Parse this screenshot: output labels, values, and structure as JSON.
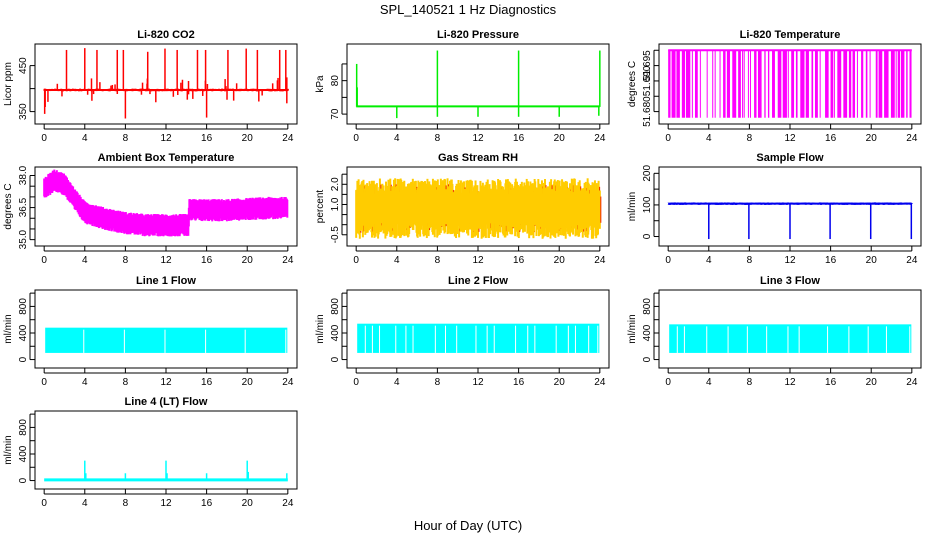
{
  "figure": {
    "title": "SPL_140521  1 Hz Diagnostics",
    "xlabel": "Hour of Day (UTC)"
  },
  "chart_data": [
    {
      "id": "co2",
      "type": "line",
      "title": "Li-820 CO2",
      "ylabel": "Licor ppm",
      "color": "#ff0000",
      "xlim": [
        0,
        24
      ],
      "ylim": [
        330,
        490
      ],
      "xticks": [
        0,
        4,
        8,
        12,
        16,
        20,
        24
      ],
      "xtick_labels": [
        "0",
        "4",
        "8",
        "12",
        "16",
        "20",
        "24"
      ],
      "yticks": [
        350,
        400,
        450
      ],
      "ytick_labels": [
        "350",
        "",
        "450"
      ],
      "baseline": 397,
      "noise": 3,
      "spikes_up": [
        [
          2.2,
          484
        ],
        [
          4.0,
          488
        ],
        [
          5.2,
          484
        ],
        [
          7.2,
          484
        ],
        [
          7.8,
          484
        ],
        [
          10.2,
          480
        ],
        [
          11.9,
          487
        ],
        [
          13.1,
          484
        ],
        [
          15.1,
          484
        ],
        [
          15.9,
          484
        ],
        [
          18.1,
          484
        ],
        [
          19.9,
          487
        ],
        [
          21.0,
          484
        ],
        [
          23.2,
          484
        ],
        [
          23.8,
          484
        ]
      ],
      "spikes_down": [
        [
          0.05,
          345
        ],
        [
          0.1,
          360
        ],
        [
          8.0,
          335
        ],
        [
          16.0,
          337
        ],
        [
          23.9,
          368
        ]
      ]
    },
    {
      "id": "pressure",
      "type": "line",
      "title": "Li-820 Pressure",
      "ylabel": "kPa",
      "color": "#00ee00",
      "xlim": [
        0,
        24
      ],
      "ylim": [
        68,
        90
      ],
      "xticks": [
        0,
        4,
        8,
        12,
        16,
        20,
        24
      ],
      "xtick_labels": [
        "0",
        "4",
        "8",
        "12",
        "16",
        "20",
        "24"
      ],
      "yticks": [
        70,
        75,
        80,
        85
      ],
      "ytick_labels": [
        "70",
        "",
        "80",
        ""
      ],
      "baseline": 72.3,
      "noise": 0.1,
      "spikes_up": [
        [
          0.05,
          85
        ],
        [
          0.1,
          78
        ],
        [
          8.0,
          89
        ],
        [
          16.0,
          89
        ],
        [
          24.0,
          89
        ]
      ],
      "spikes_down": [
        [
          4.0,
          68.8
        ],
        [
          8.0,
          69.2
        ],
        [
          12.0,
          69.2
        ],
        [
          16.0,
          69.2
        ],
        [
          20.0,
          69.2
        ],
        [
          23.9,
          69.5
        ]
      ]
    },
    {
      "id": "li820-temp",
      "type": "line",
      "title": "Li-820 Temperature",
      "ylabel": "degrees C",
      "color": "#ff00ff",
      "xlim": [
        0,
        24
      ],
      "ylim": [
        51.677,
        51.701
      ],
      "xticks": [
        0,
        4,
        8,
        12,
        16,
        20,
        24
      ],
      "xtick_labels": [
        "0",
        "4",
        "8",
        "12",
        "16",
        "20",
        "24"
      ],
      "yticks": [
        51.68,
        51.685,
        51.69,
        51.695,
        51.7
      ],
      "ytick_labels": [
        "51.680",
        "",
        "51.690",
        "51.695",
        ""
      ],
      "levels": [
        51.678,
        51.7
      ]
    },
    {
      "id": "box-temp",
      "type": "line",
      "title": "Ambient Box Temperature",
      "ylabel": "degrees C",
      "color": "#ff00ff",
      "xlim": [
        0,
        24
      ],
      "ylim": [
        34.85,
        38.25
      ],
      "xticks": [
        0,
        4,
        8,
        12,
        16,
        20,
        24
      ],
      "xtick_labels": [
        "0",
        "4",
        "8",
        "12",
        "16",
        "20",
        "24"
      ],
      "yticks": [
        35.0,
        35.5,
        36.0,
        36.5,
        37.0,
        37.5,
        38.0
      ],
      "ytick_labels": [
        "35.0",
        "",
        "",
        "36.5",
        "",
        "",
        "38.0"
      ],
      "trend": [
        [
          0,
          37.4
        ],
        [
          1,
          37.8
        ],
        [
          2,
          37.6
        ],
        [
          3,
          36.9
        ],
        [
          4,
          36.3
        ],
        [
          6,
          36.0
        ],
        [
          8,
          35.8
        ],
        [
          10,
          35.7
        ],
        [
          12,
          35.7
        ],
        [
          14.2,
          35.7
        ],
        [
          14.3,
          36.4
        ],
        [
          16,
          36.4
        ],
        [
          18,
          36.4
        ],
        [
          20,
          36.45
        ],
        [
          22,
          36.5
        ],
        [
          24,
          36.5
        ]
      ],
      "spread": 0.35
    },
    {
      "id": "rh",
      "type": "line",
      "title": "Gas Stream RH",
      "ylabel": "percent",
      "color": "#ffcc00",
      "dot_color": "#ee2200",
      "xlim": [
        0,
        24
      ],
      "ylim": [
        -0.9,
        2.7
      ],
      "xticks": [
        0,
        4,
        8,
        12,
        16,
        20,
        24
      ],
      "xtick_labels": [
        "0",
        "4",
        "8",
        "12",
        "16",
        "20",
        "24"
      ],
      "yticks": [
        -0.5,
        0.0,
        0.5,
        1.0,
        1.5,
        2.0,
        2.5
      ],
      "ytick_labels": [
        "-0.5",
        "",
        "",
        "1.0",
        "",
        "2.0",
        ""
      ],
      "center": 0.9,
      "range": [
        -0.7,
        2.3
      ]
    },
    {
      "id": "sample-flow",
      "type": "line",
      "title": "Sample Flow",
      "ylabel": "ml/min",
      "color": "#0000ee",
      "xlim": [
        0,
        24
      ],
      "ylim": [
        -20,
        210
      ],
      "xticks": [
        0,
        4,
        8,
        12,
        16,
        20,
        24
      ],
      "xtick_labels": [
        "0",
        "4",
        "8",
        "12",
        "16",
        "20",
        "24"
      ],
      "yticks": [
        0,
        50,
        100,
        150,
        200
      ],
      "ytick_labels": [
        "0",
        "",
        "100",
        "",
        "200"
      ],
      "baseline": 104,
      "noise": 4,
      "spikes_down": [
        [
          4.0,
          -8
        ],
        [
          7.95,
          -8
        ],
        [
          12.0,
          -8
        ],
        [
          15.95,
          -8
        ],
        [
          19.95,
          -8
        ],
        [
          23.95,
          -8
        ]
      ]
    },
    {
      "id": "line1-flow",
      "type": "area",
      "title": "Line 1 Flow",
      "ylabel": "ml/min",
      "color": "#00ffff",
      "xlim": [
        0,
        24
      ],
      "ylim": [
        -80,
        1000
      ],
      "xticks": [
        0,
        4,
        8,
        12,
        16,
        20,
        24
      ],
      "xtick_labels": [
        "0",
        "4",
        "8",
        "12",
        "16",
        "20",
        "24"
      ],
      "yticks": [
        0,
        200,
        400,
        600,
        800,
        1000
      ],
      "ytick_labels": [
        "0",
        "",
        "400",
        "",
        "800",
        ""
      ],
      "band": [
        100,
        480
      ],
      "gaps": [
        3.9,
        7.9,
        11.9,
        15.9,
        19.8,
        23.8
      ]
    },
    {
      "id": "line2-flow",
      "type": "area",
      "title": "Line 2 Flow",
      "ylabel": "ml/min",
      "color": "#00ffff",
      "xlim": [
        0,
        24
      ],
      "ylim": [
        -80,
        1000
      ],
      "xticks": [
        0,
        4,
        8,
        12,
        16,
        20,
        24
      ],
      "xtick_labels": [
        "0",
        "4",
        "8",
        "12",
        "16",
        "20",
        "24"
      ],
      "yticks": [
        0,
        200,
        400,
        600,
        800,
        1000
      ],
      "ytick_labels": [
        "0",
        "",
        "400",
        "",
        "800",
        ""
      ],
      "band": [
        100,
        540
      ],
      "gaps": [
        0.9,
        1.6,
        2.3,
        3.9,
        4.9,
        5.6,
        7.8,
        8.8,
        9.9,
        11.8,
        12.9,
        13.6,
        15.7,
        16.9,
        17.6,
        19.7,
        20.9,
        21.6,
        22.9,
        23.8
      ]
    },
    {
      "id": "line3-flow",
      "type": "area",
      "title": "Line 3 Flow",
      "ylabel": "ml/min",
      "color": "#00ffff",
      "xlim": [
        0,
        24
      ],
      "ylim": [
        -80,
        1000
      ],
      "xticks": [
        0,
        4,
        8,
        12,
        16,
        20,
        24
      ],
      "xtick_labels": [
        "0",
        "4",
        "8",
        "12",
        "16",
        "20",
        "24"
      ],
      "yticks": [
        0,
        200,
        400,
        600,
        800,
        1000
      ],
      "ytick_labels": [
        "0",
        "",
        "400",
        "",
        "800",
        ""
      ],
      "band": [
        100,
        530
      ],
      "gaps": [
        0.9,
        1.6,
        3.8,
        5.9,
        7.8,
        9.7,
        11.8,
        12.9,
        15.7,
        17.8,
        19.7,
        21.5,
        23.8
      ]
    },
    {
      "id": "line4-flow",
      "type": "line",
      "title": "Line 4 (LT) Flow",
      "ylabel": "ml/min",
      "color": "#00ffff",
      "xlim": [
        0,
        24
      ],
      "ylim": [
        -80,
        1000
      ],
      "xticks": [
        0,
        4,
        8,
        12,
        16,
        20,
        24
      ],
      "xtick_labels": [
        "0",
        "4",
        "8",
        "12",
        "16",
        "20",
        "24"
      ],
      "yticks": [
        0,
        200,
        400,
        600,
        800,
        1000
      ],
      "ytick_labels": [
        "0",
        "",
        "400",
        "",
        "800",
        ""
      ],
      "baseline": 10,
      "spikes_up": [
        [
          4.0,
          300
        ],
        [
          4.1,
          110
        ],
        [
          8.0,
          110
        ],
        [
          12.0,
          300
        ],
        [
          12.1,
          110
        ],
        [
          16.0,
          110
        ],
        [
          20.0,
          300
        ],
        [
          20.1,
          130
        ],
        [
          23.9,
          110
        ]
      ]
    }
  ]
}
